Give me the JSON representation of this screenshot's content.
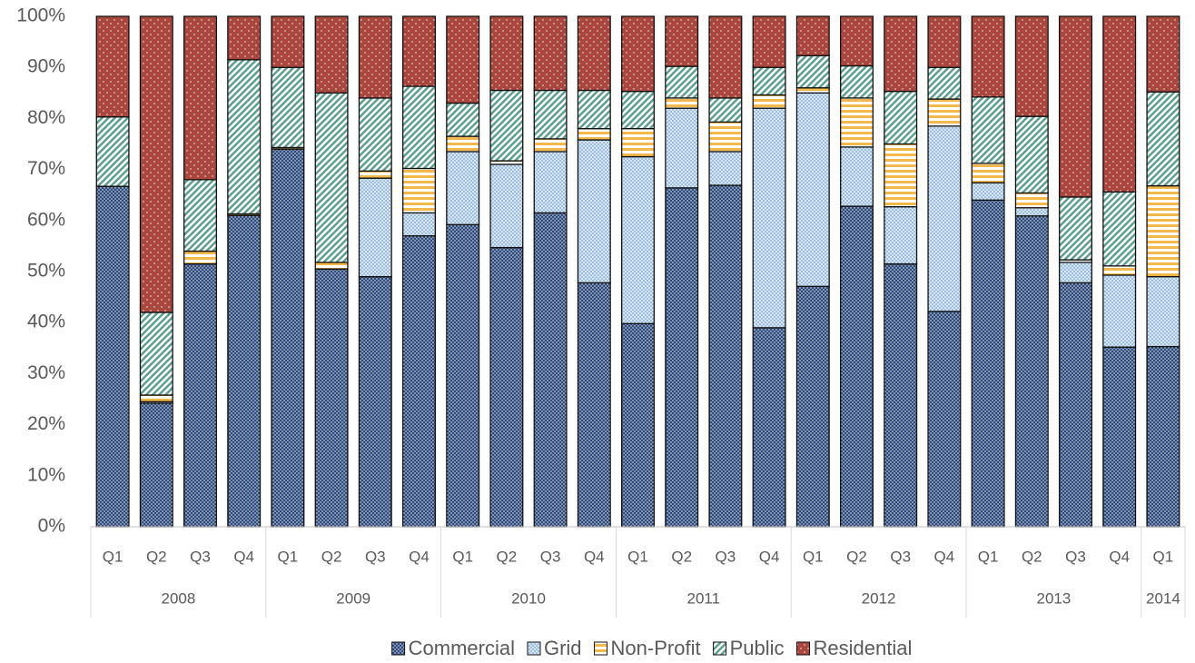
{
  "chart_data": {
    "type": "stacked_bar",
    "percent": true,
    "categories": [
      "Q1",
      "Q2",
      "Q3",
      "Q4",
      "Q1",
      "Q2",
      "Q3",
      "Q4",
      "Q1",
      "Q2",
      "Q3",
      "Q4",
      "Q1",
      "Q2",
      "Q3",
      "Q4",
      "Q1",
      "Q2",
      "Q3",
      "Q4",
      "Q1",
      "Q2",
      "Q3",
      "Q4",
      "Q1"
    ],
    "groups": [
      {
        "name": "2008",
        "size": 4
      },
      {
        "name": "2009",
        "size": 4
      },
      {
        "name": "2010",
        "size": 4
      },
      {
        "name": "2011",
        "size": 4
      },
      {
        "name": "2012",
        "size": 4
      },
      {
        "name": "2013",
        "size": 4
      },
      {
        "name": "2014",
        "size": 1
      }
    ],
    "series": [
      {
        "name": "Commercial",
        "color": "#2f4b7c",
        "pattern": "dense-dots",
        "values": [
          66.7,
          24.2,
          51.5,
          61,
          74,
          50.5,
          49,
          57,
          59.2,
          54.7,
          61.5,
          47.8,
          39.8,
          66.4,
          66.9,
          39,
          47.1,
          62.8,
          51.5,
          42.2,
          64,
          60.9,
          47.8,
          35.2,
          35.3
        ]
      },
      {
        "name": "Grid",
        "color": "#5b8fc7",
        "pattern": "light-dots",
        "values": [
          0,
          0.3,
          0,
          0,
          0,
          0,
          19.3,
          4.5,
          14.3,
          16.3,
          12,
          28,
          32.7,
          15.6,
          6.6,
          43,
          37.9,
          11.6,
          11.2,
          36.3,
          3.4,
          1.6,
          4,
          14.1,
          13.7
        ]
      },
      {
        "name": "Non-Profit",
        "color": "#f2b84b",
        "pattern": "horizontal",
        "values": [
          0,
          1.3,
          2.5,
          0.3,
          0.3,
          1.3,
          1.4,
          8.7,
          3,
          0.7,
          2.5,
          2.2,
          5.5,
          2,
          5.8,
          2.6,
          1,
          9.6,
          12.3,
          5.3,
          3.8,
          2.9,
          0.5,
          1.8,
          17.8
        ]
      },
      {
        "name": "Public",
        "color": "#5f9e8f",
        "pattern": "diagonal",
        "values": [
          13.6,
          16.2,
          14,
          30.2,
          15.7,
          33.2,
          14.3,
          16.1,
          6.5,
          13.8,
          9.5,
          7.5,
          7.3,
          6.2,
          4.7,
          5.4,
          6.3,
          6.3,
          10.3,
          6.2,
          13,
          15,
          12.3,
          14.5,
          18.4
        ]
      },
      {
        "name": "Residential",
        "color": "#a9463e",
        "pattern": "sparse-dots",
        "values": [
          19.7,
          58,
          32,
          8.5,
          10,
          15,
          16,
          13.7,
          17,
          14.5,
          14.5,
          14.5,
          14.7,
          9.8,
          16,
          10,
          7.7,
          9.7,
          14.7,
          10,
          15.8,
          19.6,
          35.4,
          34.4,
          14.8
        ]
      }
    ],
    "ylim": [
      0,
      100
    ],
    "yticks": [
      {
        "value": 0,
        "label": "0%"
      },
      {
        "value": 10,
        "label": "10%"
      },
      {
        "value": 20,
        "label": "20%"
      },
      {
        "value": 30,
        "label": "30%"
      },
      {
        "value": 40,
        "label": "40%"
      },
      {
        "value": 50,
        "label": "50%"
      },
      {
        "value": 60,
        "label": "60%"
      },
      {
        "value": 70,
        "label": "70%"
      },
      {
        "value": 80,
        "label": "80%"
      },
      {
        "value": 90,
        "label": "90%"
      },
      {
        "value": 100,
        "label": "100%"
      }
    ],
    "grid": false,
    "legend": "bottom"
  }
}
